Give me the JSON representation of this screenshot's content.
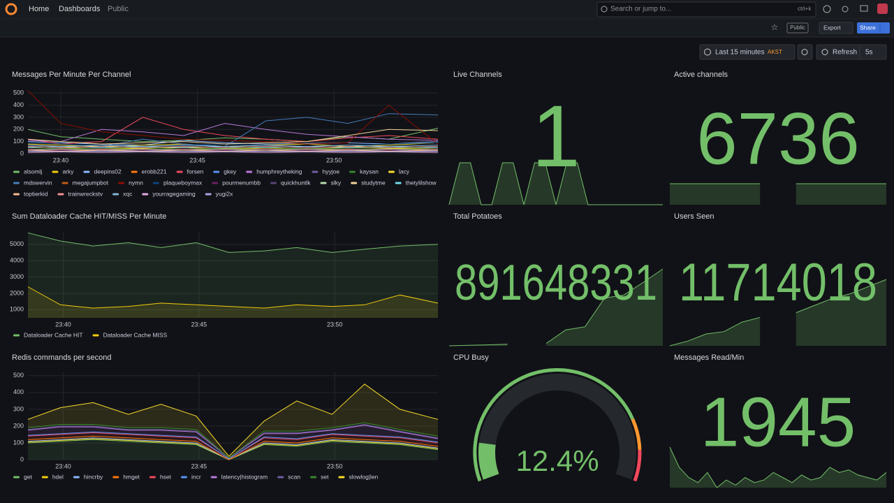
{
  "header": {
    "breadcrumbs": [
      "Home",
      "Dashboards",
      "Public"
    ],
    "search": "Search or jump to...",
    "shortcut": "ctrl+k"
  },
  "toolbar": {
    "badge": "Public",
    "export": "Export",
    "share": "Share"
  },
  "time_controls": {
    "range": "Last 15 minutes",
    "timezone": "AKST",
    "refresh": "Refresh",
    "interval": "5s"
  },
  "panels": [
    {
      "type": "line",
      "title": "Messages Per Minute Per Channel",
      "x": [
        38.8,
        40,
        41.5,
        43,
        44.5,
        46,
        47.5,
        49,
        50.5,
        52,
        53.8
      ],
      "xlim": [
        38.8,
        53.8
      ],
      "xticks": [
        {
          "value": 40,
          "label": "23:40"
        },
        {
          "value": 45,
          "label": "23:45"
        },
        {
          "value": 50,
          "label": "23:50"
        }
      ],
      "ylim": [
        0,
        530
      ],
      "yticks": [
        0,
        100,
        200,
        300,
        400,
        500
      ],
      "grid": true,
      "series": [
        {
          "name": "alsomlj",
          "color": "#73BF69",
          "values": [
            200,
            140,
            120,
            100,
            110,
            130,
            120,
            100,
            140,
            120,
            210
          ]
        },
        {
          "name": "arky",
          "color": "#F2CC0C",
          "values": [
            60,
            50,
            40,
            45,
            50,
            40,
            45,
            40,
            50,
            45,
            40
          ]
        },
        {
          "name": "deepins02",
          "color": "#8AB8FF",
          "values": [
            100,
            90,
            80,
            70,
            110,
            90,
            80,
            85,
            90,
            80,
            100
          ]
        },
        {
          "name": "erobb221",
          "color": "#FF780A",
          "values": [
            40,
            30,
            35,
            30,
            40,
            35,
            30,
            40,
            35,
            30,
            40
          ]
        },
        {
          "name": "forsen",
          "color": "#F2495C",
          "values": [
            120,
            80,
            100,
            300,
            200,
            150,
            120,
            100,
            130,
            150,
            120
          ]
        },
        {
          "name": "gkey",
          "color": "#5794F2",
          "values": [
            30,
            25,
            30,
            25,
            30,
            25,
            30,
            25,
            30,
            25,
            30
          ]
        },
        {
          "name": "humphreytheking",
          "color": "#B877D9",
          "values": [
            110,
            100,
            200,
            180,
            150,
            250,
            200,
            160,
            140,
            120,
            110
          ]
        },
        {
          "name": "hyyjoe",
          "color": "#705DA0",
          "values": [
            20,
            30,
            25,
            20,
            30,
            25,
            20,
            30,
            25,
            20,
            25
          ]
        },
        {
          "name": "kaysan",
          "color": "#37872D",
          "values": [
            50,
            40,
            45,
            50,
            40,
            45,
            50,
            40,
            45,
            50,
            45
          ]
        },
        {
          "name": "lacy",
          "color": "#FADE2A",
          "values": [
            80,
            70,
            60,
            70,
            80,
            60,
            70,
            80,
            60,
            70,
            90
          ]
        },
        {
          "name": "mdswervin",
          "color": "#447EBC",
          "values": [
            60,
            50,
            60,
            120,
            80,
            60,
            270,
            300,
            250,
            330,
            320
          ]
        },
        {
          "name": "megajumpbot",
          "color": "#C15C17",
          "values": [
            30,
            35,
            30,
            35,
            30,
            35,
            30,
            35,
            30,
            35,
            30
          ]
        },
        {
          "name": "nymn",
          "color": "#890F02",
          "values": [
            520,
            250,
            180,
            150,
            120,
            110,
            100,
            80,
            90,
            400,
            80
          ]
        },
        {
          "name": "plaqueboymax",
          "color": "#0A437C",
          "values": [
            90,
            80,
            70,
            60,
            70,
            80,
            70,
            60,
            70,
            80,
            90
          ]
        },
        {
          "name": "pourmenumbb",
          "color": "#6D1F62",
          "values": [
            40,
            30,
            40,
            30,
            40,
            30,
            40,
            30,
            40,
            30,
            40
          ]
        },
        {
          "name": "quickhuntlk",
          "color": "#584477",
          "values": [
            20,
            25,
            20,
            25,
            20,
            25,
            20,
            25,
            20,
            25,
            20
          ]
        },
        {
          "name": "slky",
          "color": "#B7DBAB",
          "values": [
            30,
            40,
            30,
            40,
            30,
            40,
            30,
            40,
            30,
            40,
            30
          ]
        },
        {
          "name": "studytme",
          "color": "#F4D598",
          "values": [
            120,
            100,
            80,
            90,
            100,
            80,
            90,
            100,
            150,
            200,
            190
          ]
        },
        {
          "name": "thetylilshow",
          "color": "#70DBED",
          "values": [
            50,
            60,
            50,
            60,
            50,
            60,
            50,
            60,
            50,
            60,
            50
          ]
        },
        {
          "name": "toptierkid",
          "color": "#F9BA8F",
          "values": [
            30,
            20,
            30,
            20,
            30,
            20,
            30,
            20,
            30,
            20,
            30
          ]
        },
        {
          "name": "trainwreckstv",
          "color": "#F29191",
          "values": [
            60,
            50,
            60,
            50,
            60,
            50,
            60,
            50,
            60,
            50,
            60
          ]
        },
        {
          "name": "xqc",
          "color": "#82B5D8",
          "values": [
            70,
            60,
            70,
            60,
            70,
            60,
            70,
            60,
            70,
            60,
            70
          ]
        },
        {
          "name": "yourragegaming",
          "color": "#E5A8E2",
          "values": [
            10,
            15,
            10,
            15,
            10,
            15,
            10,
            15,
            10,
            15,
            10
          ]
        },
        {
          "name": "yugi2x",
          "color": "#AEA2E0",
          "values": [
            20,
            15,
            20,
            15,
            20,
            15,
            20,
            15,
            20,
            15,
            20
          ]
        }
      ]
    },
    {
      "type": "stat",
      "title": "Live Channels",
      "value": 1,
      "color": "#73BF69",
      "sparkline": [
        0,
        1,
        1,
        0,
        0,
        1,
        1,
        0,
        1,
        1,
        0,
        1,
        1,
        0,
        0,
        0,
        0,
        0,
        0,
        0,
        0
      ]
    },
    {
      "type": "stat",
      "title": "Active channels",
      "value": 6736,
      "color": "#73BF69",
      "sparkline": [
        6736,
        6736,
        6736,
        6736,
        6736,
        6736,
        null,
        6736,
        6736,
        6736,
        6736,
        6736,
        6736
      ]
    },
    {
      "type": "line",
      "title": "Sum Dataloader Cache HIT/MISS Per Minute",
      "x": [
        38.7,
        39.9,
        41.1,
        42.4,
        43.6,
        44.9,
        46.1,
        47.4,
        48.6,
        49.9,
        51.1,
        52.4,
        53.8
      ],
      "xlim": [
        38.7,
        53.8
      ],
      "xticks": [
        {
          "value": 40,
          "label": "23:40"
        },
        {
          "value": 45,
          "label": "23:45"
        },
        {
          "value": 50,
          "label": "23:50"
        }
      ],
      "ylim": [
        500,
        5800
      ],
      "yticks": [
        1000,
        2000,
        3000,
        4000,
        5000
      ],
      "grid": true,
      "fill": true,
      "series": [
        {
          "name": "Dataloader Cache HIT",
          "color": "#73BF69",
          "values": [
            5700,
            5200,
            4900,
            5100,
            4800,
            5100,
            4500,
            4600,
            4800,
            4500,
            4700,
            4900,
            5000
          ]
        },
        {
          "name": "Dataloader Cache MISS",
          "color": "#F2CC0C",
          "values": [
            2400,
            1300,
            1100,
            1200,
            1400,
            1300,
            1200,
            1100,
            1300,
            1200,
            1300,
            1900,
            1400
          ]
        }
      ]
    },
    {
      "type": "stat",
      "title": "Total Potatoes",
      "value": 891648331,
      "color": "#73BF69",
      "sparkline": [
        891600000,
        891600300,
        891600600,
        891601000,
        null,
        891601500,
        891610000,
        891612000,
        891630000,
        891632000,
        891640000,
        891648331
      ]
    },
    {
      "type": "stat",
      "title": "Users Seen",
      "value": 11714018,
      "color": "#73BF69",
      "sparkline": [
        11700000,
        11701000,
        11702500,
        11703000,
        11705000,
        11706000,
        null,
        11707000,
        11708500,
        11710000,
        11711000,
        11712500,
        11714018
      ]
    },
    {
      "type": "line",
      "title": "Redis commands per second",
      "x": [
        38.7,
        39.9,
        41.1,
        42.4,
        43.6,
        44.9,
        46.1,
        47.4,
        48.6,
        49.9,
        51.1,
        52.4,
        53.8
      ],
      "xlim": [
        38.7,
        53.8
      ],
      "xticks": [
        {
          "value": 40,
          "label": "23:40"
        },
        {
          "value": 45,
          "label": "23:45"
        },
        {
          "value": 50,
          "label": "23:50"
        }
      ],
      "ylim": [
        0,
        520
      ],
      "yticks": [
        0,
        100,
        200,
        300,
        400,
        500
      ],
      "grid": true,
      "stacked": true,
      "fill": true,
      "series": [
        {
          "name": "get",
          "color": "#73BF69",
          "values": [
            100,
            110,
            120,
            110,
            100,
            90,
            0,
            90,
            80,
            110,
            100,
            90,
            60
          ]
        },
        {
          "name": "hdel",
          "color": "#F2CC0C",
          "values": [
            5,
            5,
            5,
            5,
            5,
            5,
            0,
            5,
            5,
            5,
            5,
            5,
            5
          ]
        },
        {
          "name": "hincrby",
          "color": "#8AB8FF",
          "values": [
            5,
            5,
            5,
            5,
            5,
            5,
            0,
            5,
            5,
            5,
            5,
            5,
            5
          ]
        },
        {
          "name": "hmget",
          "color": "#FF780A",
          "values": [
            10,
            10,
            10,
            10,
            10,
            10,
            0,
            10,
            10,
            10,
            10,
            10,
            10
          ]
        },
        {
          "name": "hset",
          "color": "#F2495C",
          "values": [
            20,
            20,
            20,
            20,
            20,
            20,
            5,
            20,
            20,
            20,
            20,
            20,
            20
          ]
        },
        {
          "name": "incr",
          "color": "#5794F2",
          "values": [
            5,
            5,
            5,
            5,
            5,
            5,
            0,
            5,
            5,
            5,
            5,
            5,
            5
          ]
        },
        {
          "name": "latency|histogram",
          "color": "#B877D9",
          "values": [
            30,
            40,
            30,
            20,
            30,
            30,
            5,
            20,
            30,
            20,
            60,
            30,
            20
          ]
        },
        {
          "name": "scan",
          "color": "#705DA0",
          "values": [
            5,
            5,
            5,
            5,
            5,
            5,
            0,
            5,
            5,
            5,
            5,
            5,
            5
          ]
        },
        {
          "name": "set",
          "color": "#37872D",
          "values": [
            10,
            10,
            10,
            10,
            10,
            10,
            0,
            10,
            10,
            10,
            10,
            10,
            10
          ]
        },
        {
          "name": "slowlog|len",
          "color": "#FADE2A",
          "values": [
            50,
            100,
            130,
            80,
            140,
            80,
            10,
            60,
            180,
            80,
            230,
            120,
            100
          ]
        }
      ]
    },
    {
      "type": "gauge",
      "title": "CPU Busy",
      "value": 12.4,
      "value_label": "12.4%",
      "min": 0,
      "max": 100,
      "color": "#73BF69",
      "thresholds": [
        {
          "value": 80,
          "color": "#FF9830"
        },
        {
          "value": 90,
          "color": "#F2495C"
        }
      ]
    },
    {
      "type": "stat",
      "title": "Messages Read/Min",
      "value": 1945,
      "color": "#73BF69",
      "sparkline": [
        1300,
        900,
        700,
        600,
        800,
        500,
        650,
        550,
        700,
        600,
        650,
        800,
        700,
        600,
        750,
        650,
        700,
        900,
        800,
        850,
        750,
        700,
        650,
        800
      ]
    }
  ]
}
